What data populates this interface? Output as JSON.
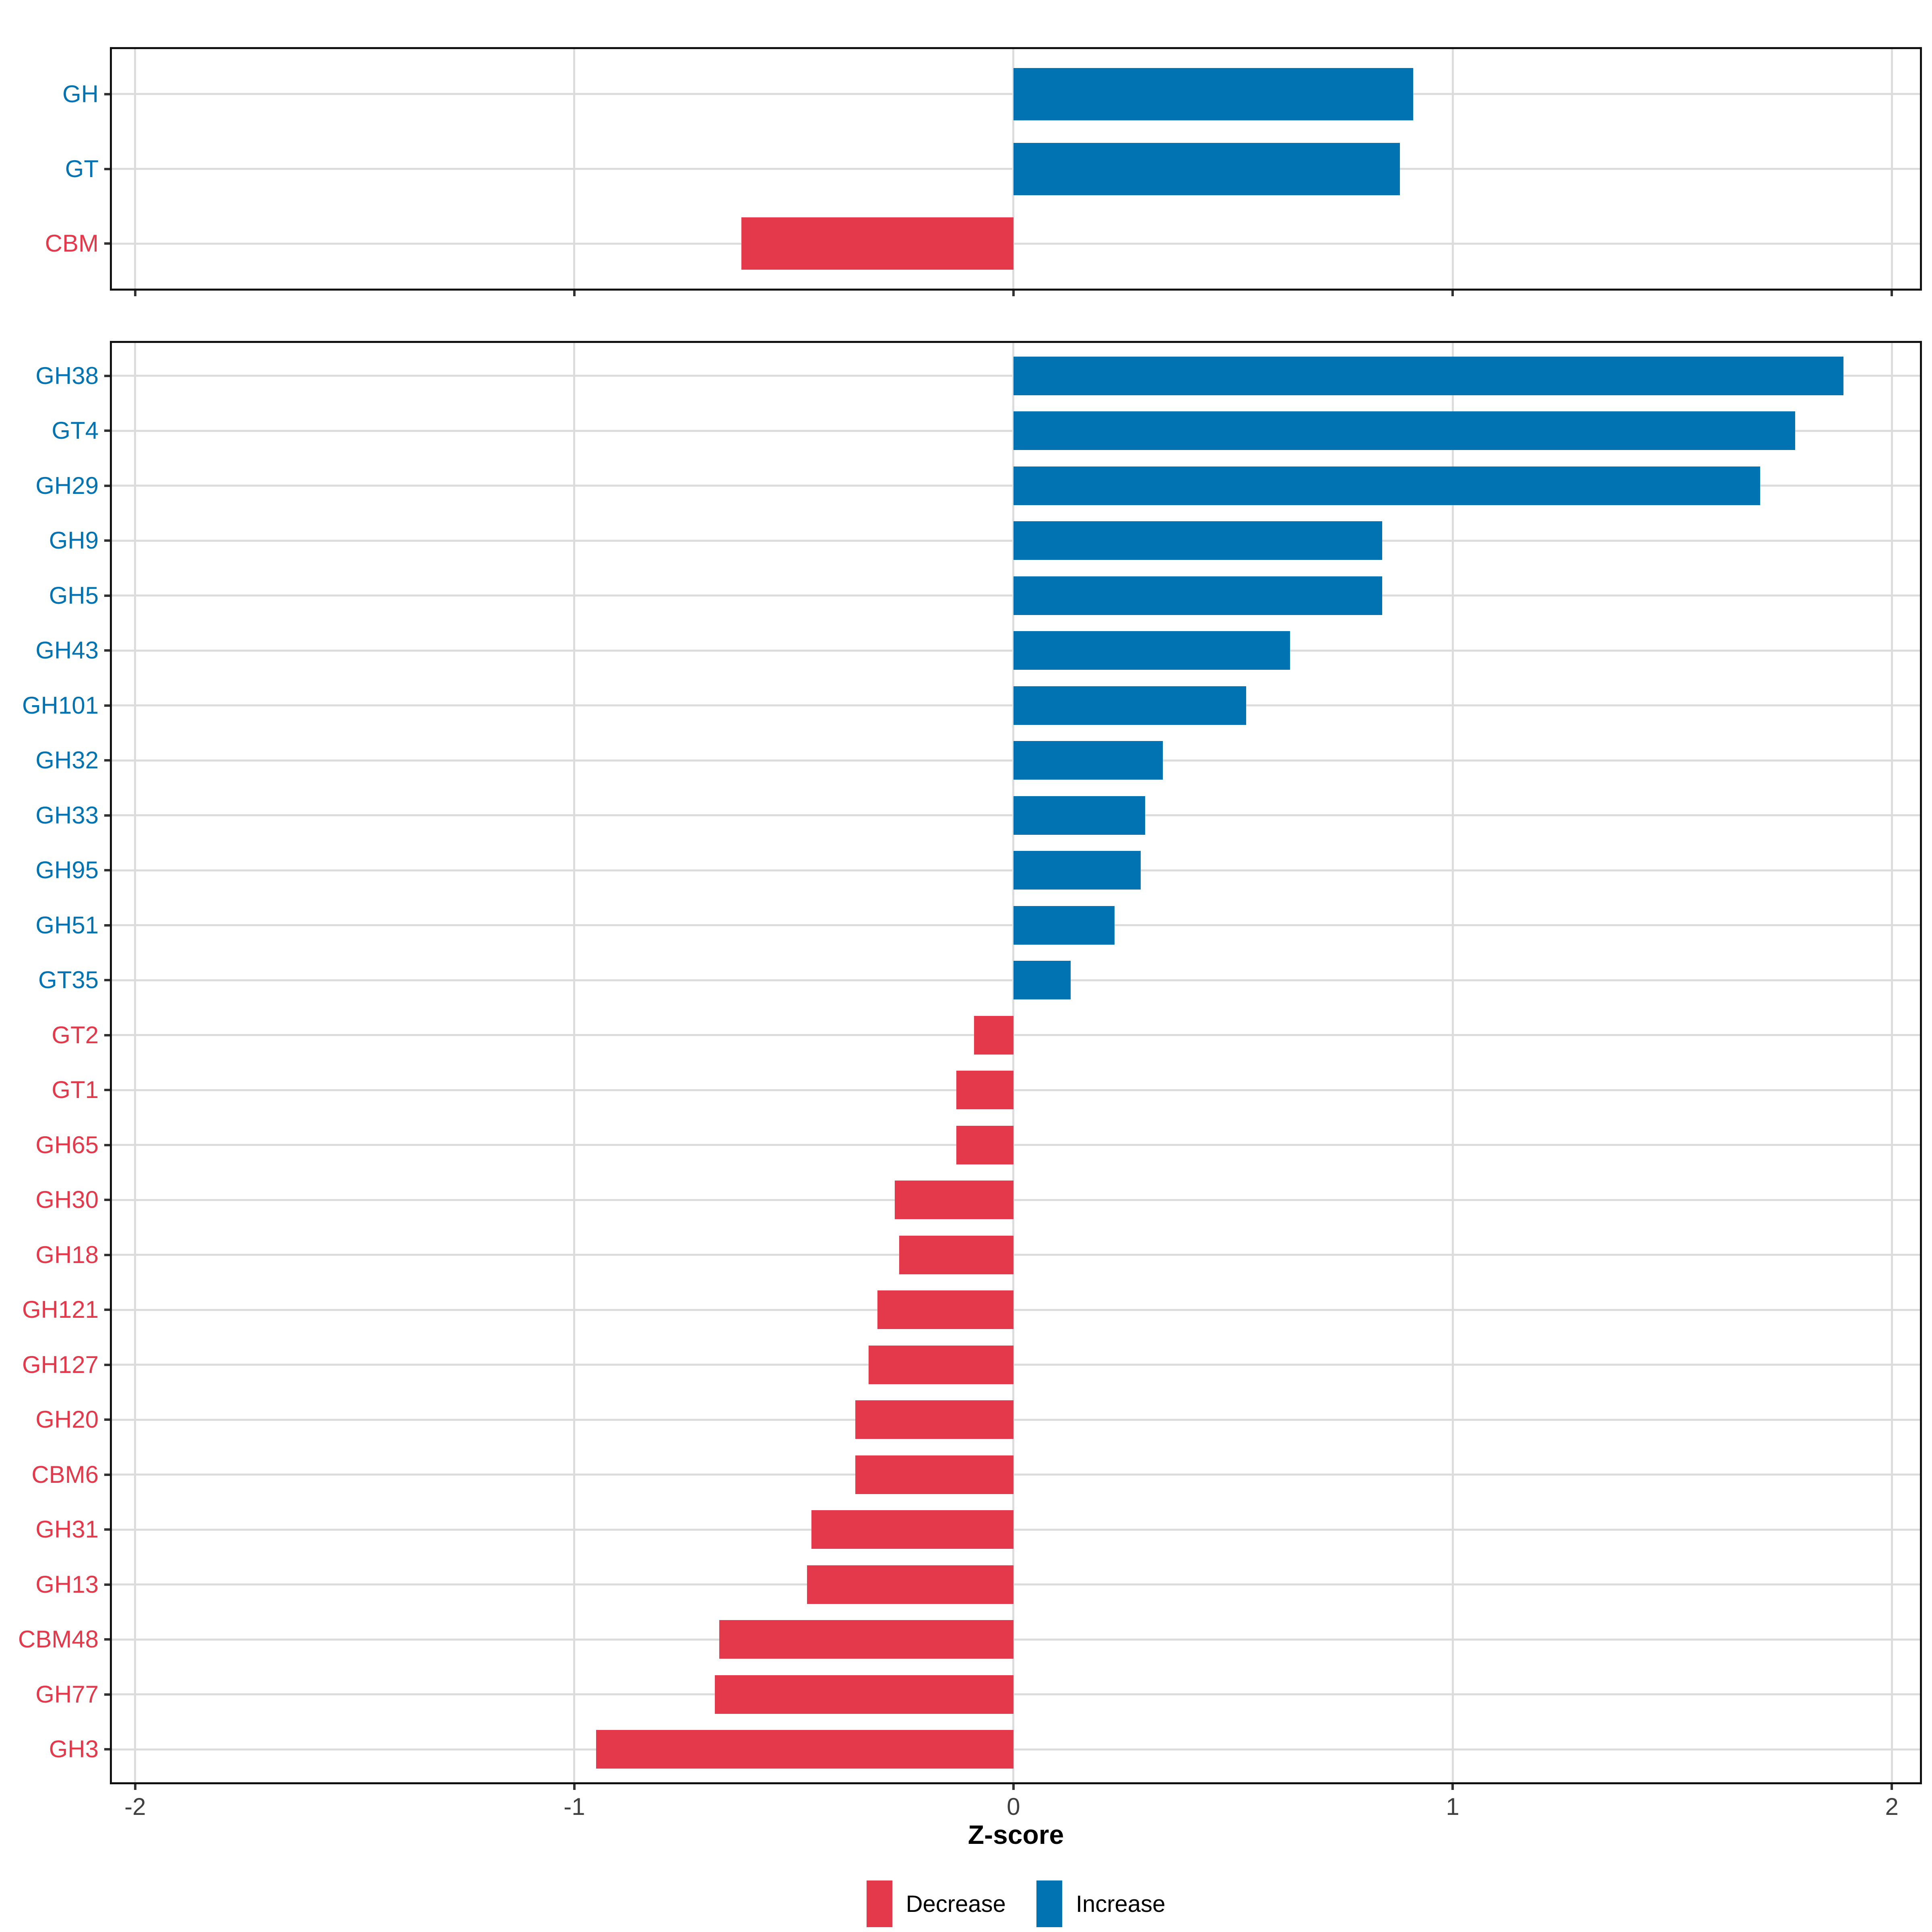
{
  "axis": {
    "title": "Z-score",
    "ticks": [
      -2,
      -1,
      0,
      1,
      2
    ],
    "tick_labels": [
      "-2",
      "-1",
      "0",
      "1",
      "2"
    ],
    "domain_min": -2.053,
    "domain_max": 2.064
  },
  "legend": {
    "items": [
      {
        "label": "Decrease",
        "direction": "Decrease"
      },
      {
        "label": "Increase",
        "direction": "Increase"
      }
    ]
  },
  "colors": {
    "increase": "#0173B2",
    "decrease": "#E4394A",
    "grid": "#DCDCDC",
    "panel_border": "#111111",
    "tick_mark": "#333333",
    "axis_text": "#404040",
    "background": "#FFFFFF"
  },
  "chart_data": [
    {
      "type": "bar",
      "orientation": "horizontal",
      "panel": "summary",
      "title": "",
      "xlabel": "Z-score",
      "xlim": [
        -2,
        2
      ],
      "grid": true,
      "legend_position": "bottom",
      "categories": [
        "GH",
        "GT",
        "CBM"
      ],
      "values": [
        0.91,
        0.88,
        -0.62
      ],
      "directions": [
        "Increase",
        "Increase",
        "Decrease"
      ]
    },
    {
      "type": "bar",
      "orientation": "horizontal",
      "panel": "families",
      "title": "",
      "xlabel": "Z-score",
      "xlim": [
        -2,
        2
      ],
      "grid": true,
      "legend_position": "bottom",
      "categories": [
        "GH38",
        "GT4",
        "GH29",
        "GH9",
        "GH5",
        "GH43",
        "GH101",
        "GH32",
        "GH33",
        "GH95",
        "GH51",
        "GT35",
        "GT2",
        "GT1",
        "GH65",
        "GH30",
        "GH18",
        "GH121",
        "GH127",
        "GH20",
        "CBM6",
        "GH31",
        "GH13",
        "CBM48",
        "GH77",
        "GH3"
      ],
      "values": [
        1.89,
        1.78,
        1.7,
        0.84,
        0.84,
        0.63,
        0.53,
        0.34,
        0.3,
        0.29,
        0.23,
        0.13,
        -0.09,
        -0.13,
        -0.13,
        -0.27,
        -0.26,
        -0.31,
        -0.33,
        -0.36,
        -0.36,
        -0.46,
        -0.47,
        -0.67,
        -0.68,
        -0.95
      ],
      "directions": [
        "Increase",
        "Increase",
        "Increase",
        "Increase",
        "Increase",
        "Increase",
        "Increase",
        "Increase",
        "Increase",
        "Increase",
        "Increase",
        "Increase",
        "Decrease",
        "Decrease",
        "Decrease",
        "Decrease",
        "Decrease",
        "Decrease",
        "Decrease",
        "Decrease",
        "Decrease",
        "Decrease",
        "Decrease",
        "Decrease",
        "Decrease",
        "Decrease"
      ]
    }
  ]
}
